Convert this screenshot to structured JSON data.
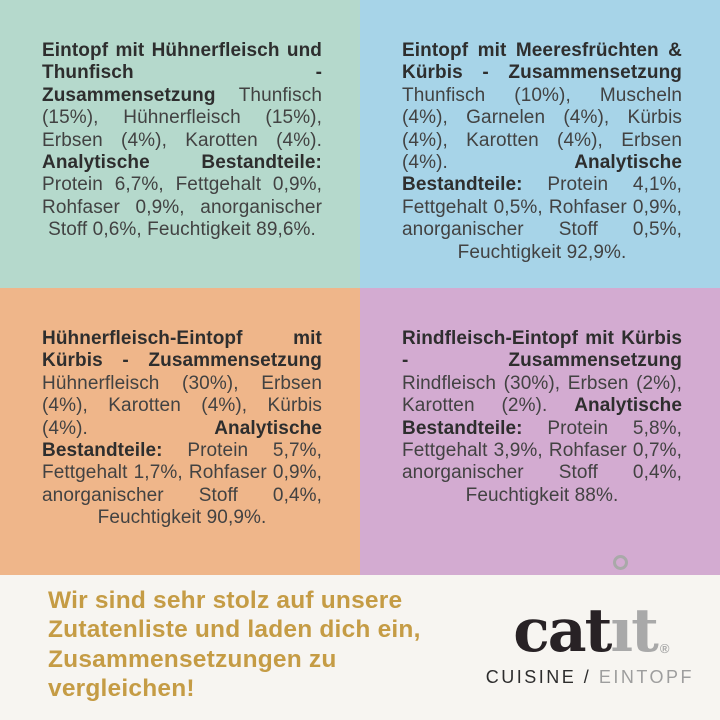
{
  "quadrants": [
    {
      "name": "chicken-tuna-stew",
      "title": "Eintopf mit Hühnerfleisch und Thunfisch - Zusammensetzung",
      "composition": "Thunfisch (15%), Hühnerfleisch (15%), Erbsen (4%), Karotten (4%).",
      "analytical_label": "Analytische Bestandteile:",
      "analytical": "Protein 6,7%, Fettgehalt 0,9%, Rohfaser 0,9%, anorganischer Stoff 0,6%, Feuchtigkeit 89,6%.",
      "bg_color": "#b5d9cc"
    },
    {
      "name": "seafood-pumpkin-stew",
      "title": "Eintopf mit Meeresfrüchten & Kürbis - Zusammensetzung",
      "composition": "Thunfisch (10%), Muscheln (4%), Garnelen (4%), Kürbis (4%), Karotten (4%), Erbsen (4%).",
      "analytical_label": "Analytische Bestandteile:",
      "analytical": "Protein 4,1%, Fettgehalt 0,5%, Rohfaser 0,9%, anorganischer Stoff 0,5%, Feuchtigkeit 92,9%.",
      "bg_color": "#a7d4e8"
    },
    {
      "name": "chicken-pumpkin-stew",
      "title": "Hühnerfleisch-Eintopf mit Kürbis - Zusammensetzung",
      "composition": "Hühnerfleisch (30%), Erbsen (4%), Karotten (4%), Kürbis (4%).",
      "analytical_label": "Analytische Bestandteile:",
      "analytical": "Protein 5,7%, Fettgehalt 1,7%, Rohfaser 0,9%, anorganischer Stoff 0,4%, Feuchtigkeit 90,9%.",
      "bg_color": "#efb68a"
    },
    {
      "name": "beef-pumpkin-stew",
      "title": "Rindfleisch-Eintopf mit Kürbis - Zusammensetzung",
      "composition": "Rindfleisch (30%), Erbsen (2%), Karotten (2%).",
      "analytical_label": "Analytische Bestandteile:",
      "analytical": "Protein 5,8%, Fettgehalt 3,9%, Rohfaser 0,7%, anorganischer Stoff 0,4%, Feuchtigkeit 88%.",
      "bg_color": "#d3abd1"
    }
  ],
  "footer": {
    "tagline_lines": [
      "Wir sind sehr stolz auf unsere",
      "Zutatenliste und laden dich ein,",
      "Zusammensetzungen zu vergleichen!"
    ],
    "tagline_color": "#c59c45",
    "brand": {
      "full_name": "catit",
      "dark_part": "cat",
      "gray_part": "ıt",
      "registered": "®",
      "subtitle_left": "CUISINE /",
      "subtitle_right": "EINTOPF"
    }
  },
  "colors": {
    "quadrant_teal": "#b5d9cc",
    "quadrant_blue": "#a7d4e8",
    "quadrant_peach": "#efb68a",
    "quadrant_lilac": "#d3abd1",
    "footer_bg": "#f7f5f1",
    "body_text": "#424242",
    "bold_text": "#2e2e2e",
    "tagline_gold": "#c59c45",
    "logo_black": "#282225",
    "logo_gray": "#a9a9a9"
  }
}
